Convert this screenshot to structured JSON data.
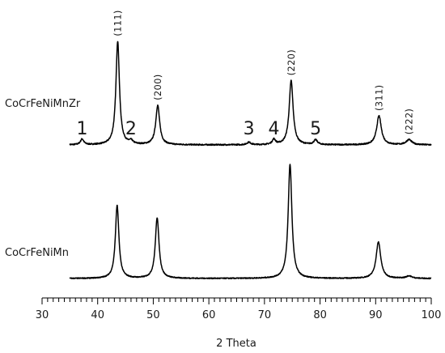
{
  "chart_data": {
    "type": "line",
    "xlabel": "2 Theta",
    "ylabel": "",
    "xlim": [
      30,
      100
    ],
    "x_ticks": [
      "30",
      "40",
      "50",
      "60",
      "70",
      "80",
      "90",
      "100"
    ],
    "minor_tick_step": 1,
    "grid": false,
    "legend": "none",
    "series": [
      {
        "name": "CoCrFeNiMnZr",
        "range": [
          35,
          100
        ],
        "baseline": 0.0,
        "noise": 0.012,
        "peaks": [
          {
            "x": 37.2,
            "height": 0.055,
            "width": 0.35
          },
          {
            "x": 43.6,
            "height": 1.0,
            "width": 0.38
          },
          {
            "x": 46.0,
            "height": 0.03,
            "width": 0.4
          },
          {
            "x": 50.8,
            "height": 0.38,
            "width": 0.42
          },
          {
            "x": 67.2,
            "height": 0.025,
            "width": 0.4
          },
          {
            "x": 71.7,
            "height": 0.05,
            "width": 0.35
          },
          {
            "x": 74.8,
            "height": 0.62,
            "width": 0.42
          },
          {
            "x": 79.2,
            "height": 0.045,
            "width": 0.4
          },
          {
            "x": 90.6,
            "height": 0.28,
            "width": 0.5
          },
          {
            "x": 96.0,
            "height": 0.05,
            "width": 0.6
          }
        ]
      },
      {
        "name": "CoCrFeNiMn",
        "range": [
          35,
          100
        ],
        "baseline": 0.0,
        "noise": 0.008,
        "peaks": [
          {
            "x": 43.5,
            "height": 0.6,
            "width": 0.38
          },
          {
            "x": 50.7,
            "height": 0.5,
            "width": 0.4
          },
          {
            "x": 74.6,
            "height": 0.94,
            "width": 0.4
          },
          {
            "x": 90.5,
            "height": 0.3,
            "width": 0.5
          },
          {
            "x": 96.0,
            "height": 0.02,
            "width": 0.6
          }
        ]
      }
    ],
    "hkl_labels": [
      {
        "text": "(111)",
        "x": 43.6
      },
      {
        "text": "(200)",
        "x": 50.8
      },
      {
        "text": "(220)",
        "x": 74.8
      },
      {
        "text": "(311)",
        "x": 90.6
      },
      {
        "text": "(222)",
        "x": 96.0
      }
    ],
    "impurity_peaks": [
      {
        "text": "1",
        "x": 37.2
      },
      {
        "text": "2",
        "x": 46.0
      },
      {
        "text": "3",
        "x": 67.2
      },
      {
        "text": "4",
        "x": 71.7
      },
      {
        "text": "5",
        "x": 79.2
      }
    ]
  }
}
